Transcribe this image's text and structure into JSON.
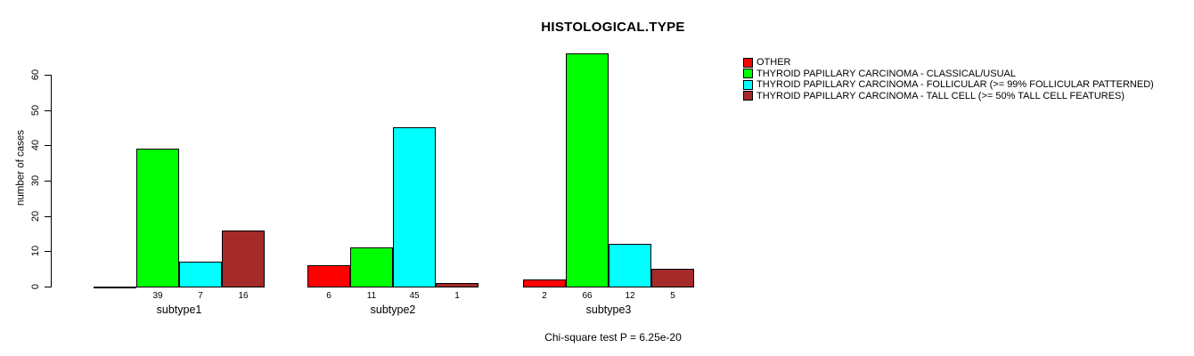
{
  "title": "HISTOLOGICAL.TYPE",
  "y_axis": {
    "label": "number of cases",
    "ticks": [
      0,
      10,
      20,
      30,
      40,
      50,
      60
    ]
  },
  "caption": "Chi-square test P = 6.25e-20",
  "legend": {
    "items": [
      {
        "label": "OTHER",
        "color": "#FF0000"
      },
      {
        "label": "THYROID PAPILLARY CARCINOMA - CLASSICAL/USUAL",
        "color": "#00FF00"
      },
      {
        "label": "THYROID PAPILLARY CARCINOMA - FOLLICULAR (>= 99% FOLLICULAR PATTERNED)",
        "color": "#00FFFF"
      },
      {
        "label": "THYROID PAPILLARY CARCINOMA - TALL CELL (>= 50% TALL CELL FEATURES)",
        "color": "#A52A2A"
      }
    ]
  },
  "chart_data": {
    "type": "bar",
    "title": "HISTOLOGICAL.TYPE",
    "xlabel": "",
    "ylabel": "number of cases",
    "categories": [
      "subtype1",
      "subtype2",
      "subtype3"
    ],
    "series": [
      {
        "name": "OTHER",
        "color": "#FF0000",
        "values": [
          0,
          6,
          2
        ]
      },
      {
        "name": "THYROID PAPILLARY CARCINOMA - CLASSICAL/USUAL",
        "color": "#00FF00",
        "values": [
          39,
          11,
          66
        ]
      },
      {
        "name": "THYROID PAPILLARY CARCINOMA - FOLLICULAR (>= 99% FOLLICULAR PATTERNED)",
        "color": "#00FFFF",
        "values": [
          7,
          45,
          12
        ]
      },
      {
        "name": "THYROID PAPILLARY CARCINOMA - TALL CELL (>= 50% TALL CELL FEATURES)",
        "color": "#A52A2A",
        "values": [
          16,
          1,
          5
        ]
      }
    ],
    "yticks": [
      0,
      10,
      20,
      30,
      40,
      50,
      60
    ],
    "ylim": [
      0,
      66
    ],
    "grid": false,
    "legend_position": "right",
    "bar_value_labels": "below-axis, zero values unlabeled",
    "annotation": "Chi-square test P = 6.25e-20"
  }
}
